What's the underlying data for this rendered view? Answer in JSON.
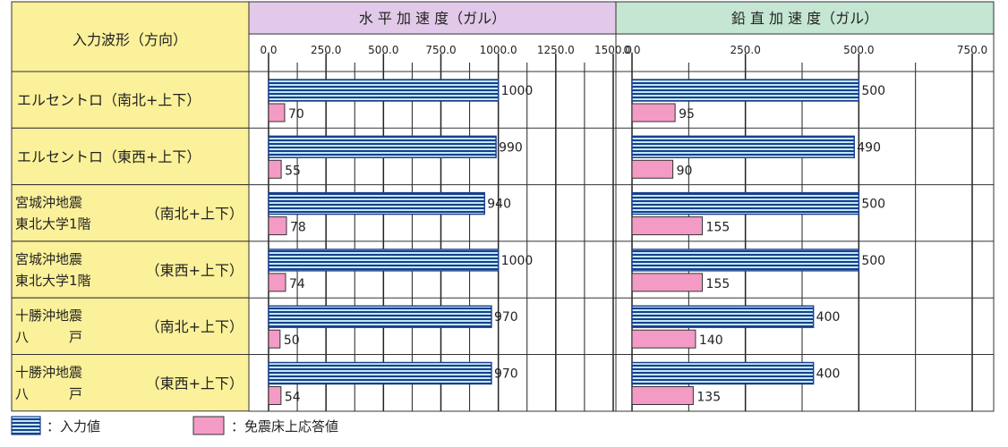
{
  "header": {
    "input_col": "入力波形（方向）",
    "horizontal": "水 平 加 速 度（ガル）",
    "vertical": "鉛 直 加 速 度（ガル）"
  },
  "rows": [
    {
      "line1": "エルセントロ（南北+上下）",
      "line2": "",
      "dir": ""
    },
    {
      "line1": "エルセントロ（東西+上下）",
      "line2": "",
      "dir": ""
    },
    {
      "line1": "宮城沖地震",
      "line2": "東北大学1階",
      "dir": "（南北+上下）"
    },
    {
      "line1": "宮城沖地震",
      "line2": "東北大学1階",
      "dir": "（東西+上下）"
    },
    {
      "line1": "十勝沖地震",
      "line2": "八　　　戸",
      "dir": "（南北+上下）"
    },
    {
      "line1": "十勝沖地震",
      "line2": "八　　　戸",
      "dir": "（東西+上下）"
    }
  ],
  "legend": {
    "input": "：入力値",
    "response": "：免震床上応答値"
  },
  "colors": {
    "header_horizontal": "#e3c9e9",
    "header_vertical": "#c4e6d3",
    "label_bg": "#fbf19a",
    "input_bar": "#bfe9f5",
    "input_stripe": "#1a3e8c",
    "response_bar": "#f39bc5"
  },
  "chart_data": [
    {
      "type": "bar",
      "title": "水 平 加 速 度（ガル）",
      "xlim": [
        0,
        1500
      ],
      "ticks": [
        "0.0",
        "250.0",
        "500.0",
        "750.0",
        "1000.0",
        "1250.0",
        "1500.0"
      ],
      "categories": [
        "エルセントロ（南北+上下）",
        "エルセントロ（東西+上下）",
        "宮城沖地震 東北大学1階（南北+上下）",
        "宮城沖地震 東北大学1階（東西+上下）",
        "十勝沖地震 八戸（南北+上下）",
        "十勝沖地震 八戸（東西+上下）"
      ],
      "series": [
        {
          "name": "入力値",
          "values": [
            1000,
            990,
            940,
            1000,
            970,
            970
          ]
        },
        {
          "name": "免震床上応答値",
          "values": [
            70,
            55,
            78,
            74,
            50,
            54
          ]
        }
      ]
    },
    {
      "type": "bar",
      "title": "鉛 直 加 速 度（ガル）",
      "xlim": [
        0,
        750
      ],
      "ticks": [
        "0.0",
        "250.0",
        "500.0",
        "750.0"
      ],
      "categories": [
        "エルセントロ（南北+上下）",
        "エルセントロ（東西+上下）",
        "宮城沖地震 東北大学1階（南北+上下）",
        "宮城沖地震 東北大学1階（東西+上下）",
        "十勝沖地震 八戸（南北+上下）",
        "十勝沖地震 八戸（東西+上下）"
      ],
      "series": [
        {
          "name": "入力値",
          "values": [
            500,
            490,
            500,
            500,
            400,
            400
          ]
        },
        {
          "name": "免震床上応答値",
          "values": [
            95,
            90,
            155,
            155,
            140,
            135
          ]
        }
      ]
    }
  ]
}
